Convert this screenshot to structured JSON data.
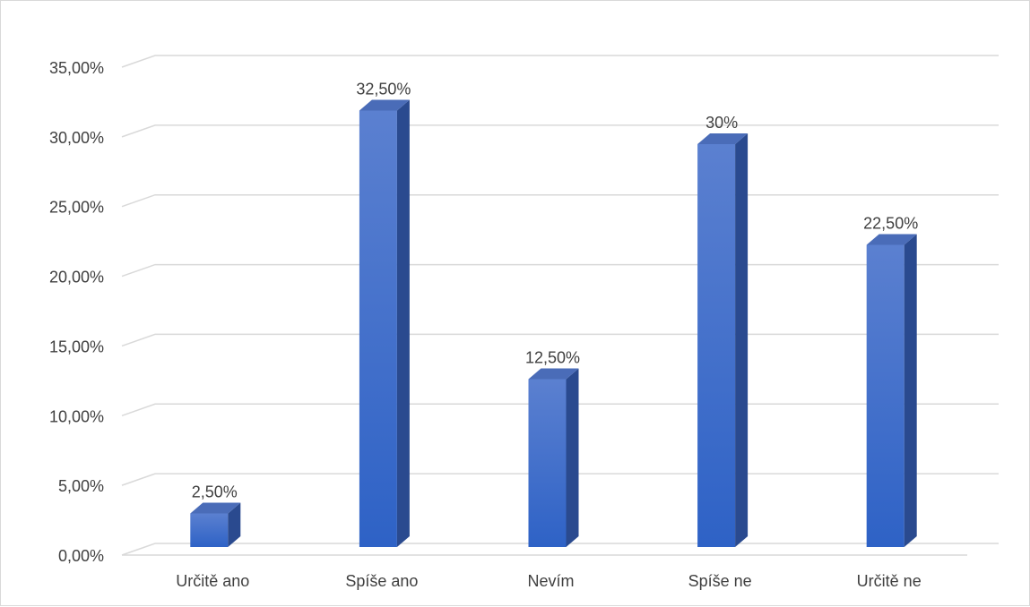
{
  "chart_data": {
    "type": "bar",
    "categories": [
      "Určitě ano",
      "Spíše ano",
      "Nevím",
      "Spíše ne",
      "Určitě ne"
    ],
    "values": [
      2.5,
      32.5,
      12.5,
      30,
      22.5
    ],
    "data_labels": [
      "2,50%",
      "32,50%",
      "12,50%",
      "30%",
      "22,50%"
    ],
    "y_ticks": [
      0,
      5,
      10,
      15,
      20,
      25,
      30,
      35
    ],
    "y_tick_labels": [
      "0,00%",
      "5,00%",
      "10,00%",
      "15,00%",
      "20,00%",
      "25,00%",
      "30,00%",
      "35,00%"
    ],
    "ylim": [
      0,
      35
    ],
    "grid": true,
    "legend": "none",
    "style": "3d-column",
    "colors": {
      "bar_front_top": "#5b80d0",
      "bar_front_bottom": "#2e62c6",
      "bar_side": "#2a4a8f",
      "bar_top": "#4a6cb8",
      "grid": "#d9d9d9",
      "text": "#404040"
    }
  }
}
